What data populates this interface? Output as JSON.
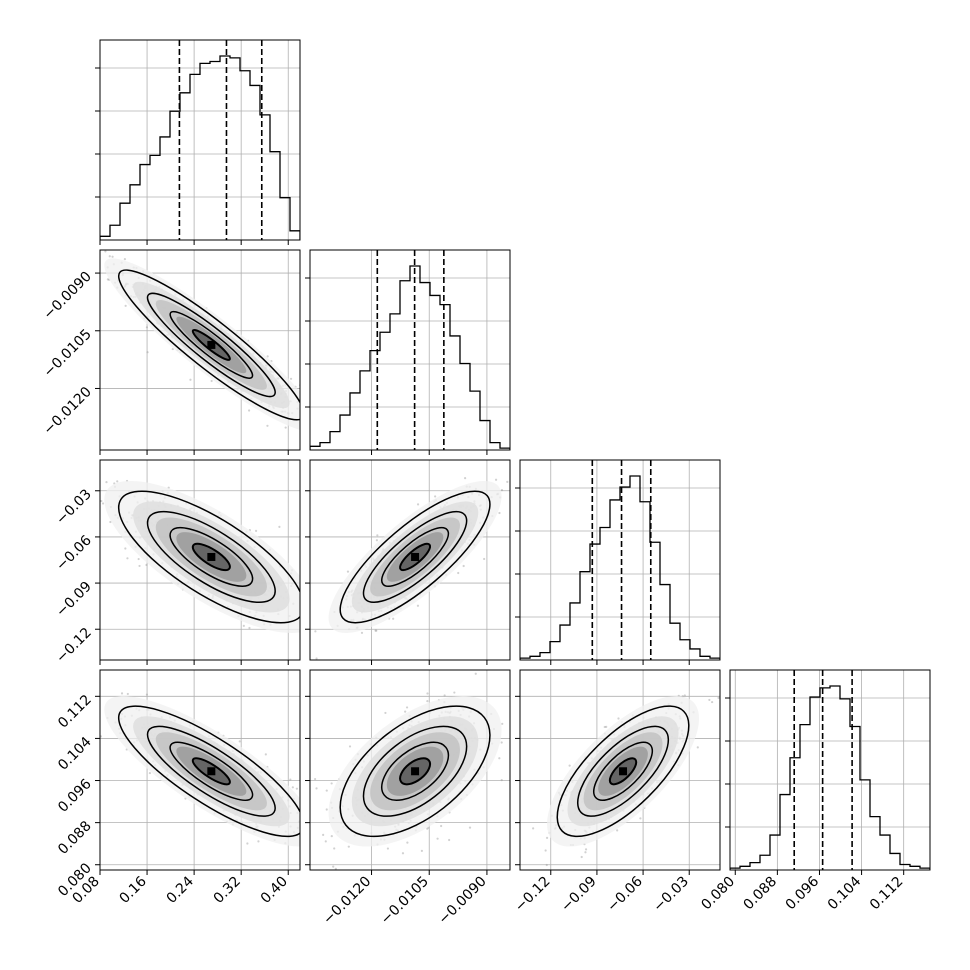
{
  "chart_data": {
    "type": "corner",
    "params": [
      {
        "range": [
          0.08,
          0.42
        ],
        "ticks": [
          0.08,
          0.16,
          0.24,
          0.32,
          0.4
        ],
        "tick_labels": [
          "0.08",
          "0.16",
          "0.24",
          "0.32",
          "0.40"
        ],
        "quantiles": [
          0.215,
          0.295,
          0.355
        ],
        "hist": [
          0.02,
          0.08,
          0.2,
          0.3,
          0.41,
          0.46,
          0.56,
          0.7,
          0.8,
          0.9,
          0.96,
          0.97,
          1.0,
          0.99,
          0.92,
          0.84,
          0.68,
          0.48,
          0.23,
          0.05
        ]
      },
      {
        "range": [
          -0.0136,
          -0.0084
        ],
        "ticks": [
          -0.012,
          -0.0105,
          -0.009
        ],
        "tick_labels": [
          "−0.0120",
          "−0.0105",
          "−0.0090"
        ],
        "quantiles": [
          -0.01185,
          -0.01088,
          -0.01012
        ],
        "hist": [
          0.02,
          0.04,
          0.1,
          0.19,
          0.31,
          0.43,
          0.54,
          0.64,
          0.74,
          0.92,
          1.0,
          0.91,
          0.84,
          0.79,
          0.62,
          0.47,
          0.32,
          0.16,
          0.04,
          0.01
        ]
      },
      {
        "range": [
          -0.14,
          -0.01
        ],
        "ticks": [
          -0.12,
          -0.09,
          -0.06,
          -0.03
        ],
        "tick_labels": [
          "−0.12",
          "−0.09",
          "−0.06",
          "−0.03"
        ],
        "quantiles": [
          -0.093,
          -0.074,
          -0.055
        ],
        "hist": [
          0.01,
          0.02,
          0.04,
          0.1,
          0.19,
          0.31,
          0.48,
          0.63,
          0.72,
          0.87,
          0.94,
          1.0,
          0.86,
          0.64,
          0.41,
          0.2,
          0.11,
          0.06,
          0.02,
          0.01
        ]
      },
      {
        "range": [
          0.079,
          0.117
        ],
        "ticks": [
          0.08,
          0.088,
          0.096,
          0.104,
          0.112
        ],
        "tick_labels": [
          "0.080",
          "0.088",
          "0.096",
          "0.104",
          "0.112"
        ],
        "quantiles": [
          0.0912,
          0.0966,
          0.1022
        ],
        "hist": [
          0.01,
          0.02,
          0.04,
          0.08,
          0.19,
          0.41,
          0.61,
          0.79,
          0.94,
          0.99,
          1.0,
          0.93,
          0.78,
          0.49,
          0.29,
          0.19,
          0.09,
          0.03,
          0.02,
          0.01
        ]
      }
    ],
    "correlations": {
      "1-0": -0.92,
      "2-0": -0.75,
      "2-1": 0.8,
      "3-0": -0.82,
      "3-1": 0.55,
      "3-2": 0.7
    },
    "grid": true
  }
}
